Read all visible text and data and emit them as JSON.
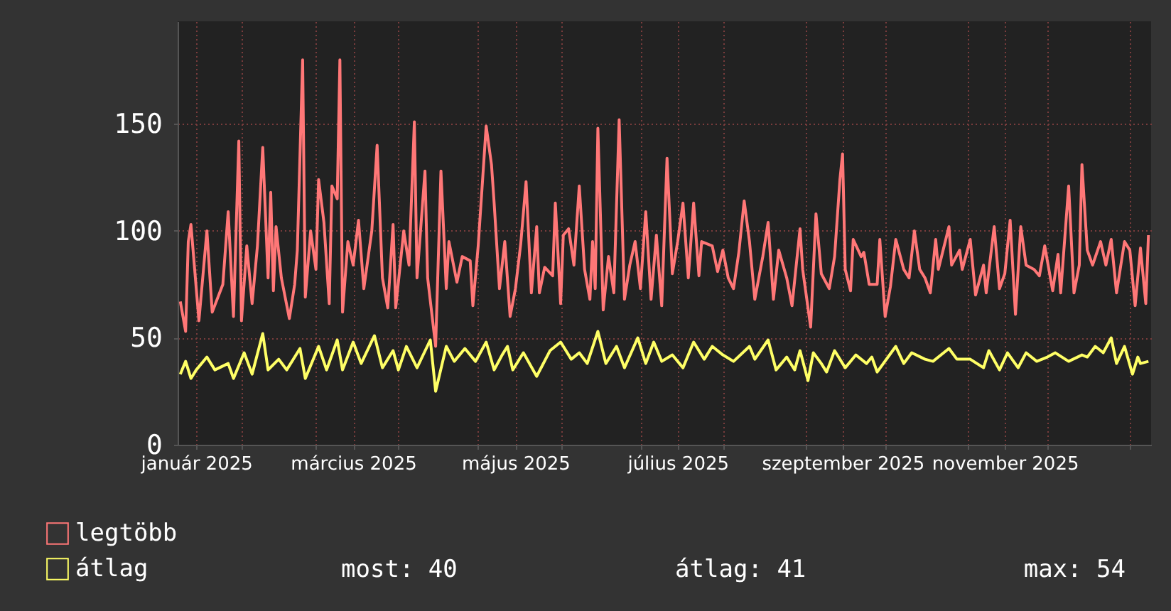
{
  "chart_data": {
    "type": "line",
    "xlim": [
      "2025-01-08",
      "2026-01-09"
    ],
    "xticks": [
      {
        "value": "2025-01-15",
        "label": "január 2025"
      },
      {
        "value": "2025-02-01",
        "label": null
      },
      {
        "value": "2025-03-01",
        "label": null
      },
      {
        "value": "2025-03-15",
        "label": "március 2025"
      },
      {
        "value": "2025-04-01",
        "label": null
      },
      {
        "value": "2025-05-01",
        "label": null
      },
      {
        "value": "2025-05-15",
        "label": "május 2025"
      },
      {
        "value": "2025-06-01",
        "label": null
      },
      {
        "value": "2025-07-01",
        "label": null
      },
      {
        "value": "2025-07-15",
        "label": "július 2025"
      },
      {
        "value": "2025-08-01",
        "label": null
      },
      {
        "value": "2025-09-01",
        "label": null
      },
      {
        "value": "2025-09-15",
        "label": "szeptember 2025"
      },
      {
        "value": "2025-10-01",
        "label": null
      },
      {
        "value": "2025-11-01",
        "label": null
      },
      {
        "value": "2025-11-15",
        "label": "november 2025"
      },
      {
        "value": "2025-12-01",
        "label": null
      },
      {
        "value": "2026-01-01",
        "label": null
      }
    ],
    "ylim": [
      0,
      198
    ],
    "yticks": [
      0,
      50,
      100,
      150
    ],
    "grid": true,
    "legend": "bottom left",
    "line_style": "solid",
    "annotations": [
      "most: 40",
      "átlag: 41",
      "max: 54"
    ],
    "series": [
      {
        "name": "legtöbb",
        "color": "#ff7777",
        "x": [
          "2025-01-09",
          "2025-01-11",
          "2025-01-12",
          "2025-01-13",
          "2025-01-15",
          "2025-01-16",
          "2025-01-19",
          "2025-01-21",
          "2025-01-25",
          "2025-01-27",
          "2025-01-29",
          "2025-01-31",
          "2025-02-01",
          "2025-02-03",
          "2025-02-05",
          "2025-02-07",
          "2025-02-09",
          "2025-02-11",
          "2025-02-12",
          "2025-02-13",
          "2025-02-14",
          "2025-02-16",
          "2025-02-19",
          "2025-02-21",
          "2025-02-22",
          "2025-02-24",
          "2025-02-25",
          "2025-02-27",
          "2025-03-01",
          "2025-03-02",
          "2025-03-04",
          "2025-03-06",
          "2025-03-07",
          "2025-03-09",
          "2025-03-10",
          "2025-03-11",
          "2025-03-13",
          "2025-03-15",
          "2025-03-17",
          "2025-03-19",
          "2025-03-22",
          "2025-03-24",
          "2025-03-26",
          "2025-03-28",
          "2025-03-30",
          "2025-03-31",
          "2025-04-03",
          "2025-04-05",
          "2025-04-07",
          "2025-04-08",
          "2025-04-11",
          "2025-04-12",
          "2025-04-15",
          "2025-04-17",
          "2025-04-19",
          "2025-04-20",
          "2025-04-23",
          "2025-04-25",
          "2025-04-28",
          "2025-04-29",
          "2025-05-01",
          "2025-05-04",
          "2025-05-06",
          "2025-05-07",
          "2025-05-09",
          "2025-05-11",
          "2025-05-13",
          "2025-05-15",
          "2025-05-17",
          "2025-05-19",
          "2025-05-21",
          "2025-05-23",
          "2025-05-24",
          "2025-05-26",
          "2025-05-29",
          "2025-05-30",
          "2025-06-01",
          "2025-06-02",
          "2025-06-04",
          "2025-06-06",
          "2025-06-08",
          "2025-06-10",
          "2025-06-12",
          "2025-06-13",
          "2025-06-14",
          "2025-06-15",
          "2025-06-17",
          "2025-06-19",
          "2025-06-21",
          "2025-06-23",
          "2025-06-25",
          "2025-06-27",
          "2025-06-29",
          "2025-07-01",
          "2025-07-03",
          "2025-07-05",
          "2025-07-07",
          "2025-07-09",
          "2025-07-11",
          "2025-07-13",
          "2025-07-15",
          "2025-07-17",
          "2025-07-19",
          "2025-07-21",
          "2025-07-23",
          "2025-07-24",
          "2025-07-28",
          "2025-07-30",
          "2025-08-01",
          "2025-08-03",
          "2025-08-05",
          "2025-08-07",
          "2025-08-09",
          "2025-08-11",
          "2025-08-13",
          "2025-08-16",
          "2025-08-18",
          "2025-08-20",
          "2025-08-22",
          "2025-08-25",
          "2025-08-27",
          "2025-08-30",
          "2025-08-31",
          "2025-09-03",
          "2025-09-05",
          "2025-09-07",
          "2025-09-10",
          "2025-09-12",
          "2025-09-14",
          "2025-09-15",
          "2025-09-16",
          "2025-09-18",
          "2025-09-19",
          "2025-09-22",
          "2025-09-23",
          "2025-09-25",
          "2025-09-28",
          "2025-09-29",
          "2025-10-01",
          "2025-10-03",
          "2025-10-05",
          "2025-10-08",
          "2025-10-10",
          "2025-10-12",
          "2025-10-14",
          "2025-10-16",
          "2025-10-18",
          "2025-10-20",
          "2025-10-21",
          "2025-10-25",
          "2025-10-26",
          "2025-10-29",
          "2025-10-30",
          "2025-11-02",
          "2025-11-04",
          "2025-11-07",
          "2025-11-08",
          "2025-11-11",
          "2025-11-13",
          "2025-11-15",
          "2025-11-17",
          "2025-11-19",
          "2025-11-21",
          "2025-11-23",
          "2025-11-26",
          "2025-11-28",
          "2025-11-30",
          "2025-12-03",
          "2025-12-05",
          "2025-12-06",
          "2025-12-09",
          "2025-12-11",
          "2025-12-13",
          "2025-12-14",
          "2025-12-16",
          "2025-12-18",
          "2025-12-21",
          "2025-12-23",
          "2025-12-25",
          "2025-12-27",
          "2025-12-30",
          "2026-01-01",
          "2026-01-03",
          "2026-01-05",
          "2026-01-07",
          "2026-01-08"
        ],
        "values": [
          67,
          53,
          95,
          103,
          73,
          58,
          100,
          62,
          75,
          109,
          60,
          142,
          58,
          93,
          66,
          93,
          139,
          78,
          118,
          72,
          102,
          78,
          59,
          75,
          91,
          180,
          69,
          100,
          82,
          124,
          104,
          66,
          121,
          115,
          180,
          62,
          95,
          84,
          105,
          73,
          100,
          140,
          78,
          64,
          103,
          64,
          100,
          84,
          151,
          78,
          128,
          78,
          46,
          128,
          73,
          95,
          76,
          88,
          86,
          65,
          93,
          149,
          131,
          113,
          73,
          95,
          60,
          73,
          94,
          123,
          71,
          102,
          71,
          83,
          79,
          113,
          66,
          98,
          101,
          84,
          121,
          82,
          68,
          95,
          73,
          148,
          63,
          88,
          71,
          152,
          68,
          84,
          95,
          73,
          109,
          68,
          98,
          65,
          134,
          80,
          95,
          113,
          78,
          113,
          79,
          95,
          93,
          81,
          91,
          78,
          73,
          90,
          114,
          95,
          68,
          88,
          104,
          68,
          91,
          78,
          65,
          101,
          82,
          55,
          108,
          80,
          73,
          88,
          124,
          136,
          82,
          72,
          96,
          88,
          90,
          75,
          75,
          96,
          60,
          74,
          96,
          82,
          78,
          100,
          82,
          78,
          71,
          96,
          82,
          102,
          84,
          91,
          82,
          96,
          70,
          84,
          71,
          102,
          73,
          80,
          105,
          61,
          102,
          84,
          82,
          79,
          93,
          72,
          89,
          71,
          121,
          71,
          84,
          131,
          91,
          84,
          95,
          84,
          96,
          71,
          95,
          91,
          65,
          92,
          66,
          98
        ]
      },
      {
        "name": "átlag",
        "color": "#ffff66",
        "x": [
          "2025-01-09",
          "2025-01-11",
          "2025-01-13",
          "2025-01-15",
          "2025-01-19",
          "2025-01-22",
          "2025-01-27",
          "2025-01-29",
          "2025-02-02",
          "2025-02-05",
          "2025-02-09",
          "2025-02-11",
          "2025-02-15",
          "2025-02-18",
          "2025-02-23",
          "2025-02-25",
          "2025-03-02",
          "2025-03-05",
          "2025-03-09",
          "2025-03-11",
          "2025-03-15",
          "2025-03-18",
          "2025-03-23",
          "2025-03-26",
          "2025-03-30",
          "2025-04-01",
          "2025-04-04",
          "2025-04-08",
          "2025-04-13",
          "2025-04-15",
          "2025-04-19",
          "2025-04-22",
          "2025-04-26",
          "2025-04-30",
          "2025-05-04",
          "2025-05-07",
          "2025-05-10",
          "2025-05-12",
          "2025-05-14",
          "2025-05-18",
          "2025-05-23",
          "2025-05-28",
          "2025-06-01",
          "2025-06-05",
          "2025-06-08",
          "2025-06-11",
          "2025-06-15",
          "2025-06-18",
          "2025-06-22",
          "2025-06-25",
          "2025-06-30",
          "2025-07-03",
          "2025-07-06",
          "2025-07-09",
          "2025-07-13",
          "2025-07-17",
          "2025-07-21",
          "2025-07-25",
          "2025-07-28",
          "2025-08-01",
          "2025-08-05",
          "2025-08-11",
          "2025-08-13",
          "2025-08-18",
          "2025-08-21",
          "2025-08-25",
          "2025-08-28",
          "2025-08-30",
          "2025-09-02",
          "2025-09-04",
          "2025-09-07",
          "2025-09-09",
          "2025-09-12",
          "2025-09-16",
          "2025-09-20",
          "2025-09-24",
          "2025-09-26",
          "2025-09-28",
          "2025-10-05",
          "2025-10-08",
          "2025-10-11",
          "2025-10-16",
          "2025-10-19",
          "2025-10-25",
          "2025-10-28",
          "2025-11-02",
          "2025-11-07",
          "2025-11-09",
          "2025-11-13",
          "2025-11-16",
          "2025-11-20",
          "2025-11-23",
          "2025-11-27",
          "2025-12-01",
          "2025-12-04",
          "2025-12-09",
          "2025-12-14",
          "2025-12-16",
          "2025-12-19",
          "2025-12-22",
          "2025-12-25",
          "2025-12-27",
          "2025-12-30",
          "2026-01-02",
          "2026-01-04",
          "2026-01-05",
          "2026-01-08"
        ],
        "values": [
          33,
          39,
          31,
          35,
          41,
          35,
          38,
          31,
          43,
          33,
          52,
          35,
          40,
          35,
          45,
          31,
          46,
          35,
          49,
          35,
          48,
          38,
          51,
          36,
          44,
          35,
          46,
          36,
          49,
          25,
          46,
          39,
          45,
          39,
          48,
          35,
          42,
          46,
          35,
          43,
          32,
          44,
          48,
          40,
          43,
          38,
          53,
          38,
          46,
          36,
          50,
          38,
          48,
          39,
          42,
          36,
          48,
          40,
          46,
          42,
          39,
          46,
          40,
          49,
          35,
          41,
          35,
          44,
          30,
          43,
          38,
          34,
          44,
          36,
          42,
          38,
          41,
          34,
          46,
          38,
          43,
          40,
          39,
          45,
          40,
          40,
          36,
          44,
          35,
          43,
          36,
          43,
          39,
          41,
          43,
          39,
          42,
          41,
          46,
          43,
          50,
          38,
          46,
          33,
          41,
          38,
          39
        ]
      }
    ]
  }
}
